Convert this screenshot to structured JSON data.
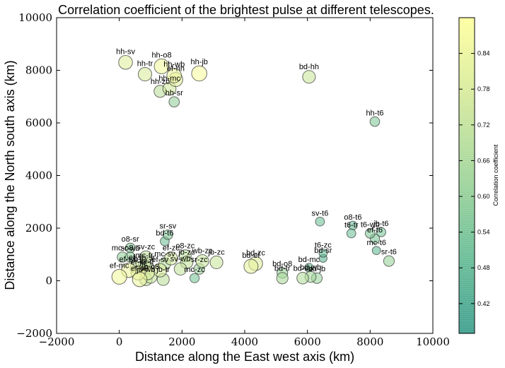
{
  "chart_data": {
    "type": "scatter",
    "title": "Correlation coefficient of the brightest pulse at different telescopes.",
    "xlabel": "Distance along the East west axis (km)",
    "ylabel": "Distance along the North south axis (km)",
    "xlim": [
      -2000,
      10000
    ],
    "ylim": [
      -2000,
      10000
    ],
    "xticks": [
      "−2000",
      "0",
      "2000",
      "4000",
      "6000",
      "8000",
      "10000"
    ],
    "yticks": [
      "−2000",
      "0",
      "2000",
      "4000",
      "6000",
      "8000",
      "10000"
    ],
    "grid": false,
    "colorbar": {
      "label": "Correlation coefficient",
      "range": [
        0.37,
        0.9
      ],
      "ticks": [
        "0.42",
        "0.48",
        "0.54",
        "0.60",
        "0.66",
        "0.72",
        "0.78",
        "0.84"
      ],
      "colormap_stops": [
        "#40a090",
        "#6cbf98",
        "#a3d69c",
        "#d5ea9e",
        "#ffffa0"
      ]
    },
    "points": [
      {
        "label": "hh-sv",
        "x": 200,
        "y": 8300,
        "c": 0.8
      },
      {
        "label": "hh-tr",
        "x": 820,
        "y": 7850,
        "c": 0.78
      },
      {
        "label": "hh-o8",
        "x": 1350,
        "y": 8150,
        "c": 0.86
      },
      {
        "label": "hh-wb",
        "x": 1750,
        "y": 7800,
        "c": 0.84
      },
      {
        "label": "hh-jb",
        "x": 2550,
        "y": 7880,
        "c": 0.88
      },
      {
        "label": "ef-hh",
        "x": 1800,
        "y": 7650,
        "c": 0.82
      },
      {
        "label": "hh-mc",
        "x": 1600,
        "y": 7300,
        "c": 0.76
      },
      {
        "label": "hh-zc",
        "x": 1300,
        "y": 7200,
        "c": 0.7
      },
      {
        "label": "hh-sr",
        "x": 1750,
        "y": 6800,
        "c": 0.6
      },
      {
        "label": "bd-hh",
        "x": 6050,
        "y": 7750,
        "c": 0.74
      },
      {
        "label": "hh-t6",
        "x": 8150,
        "y": 6050,
        "c": 0.56
      },
      {
        "label": "sv-t6",
        "x": 6400,
        "y": 2250,
        "c": 0.52
      },
      {
        "label": "o8-t6",
        "x": 7450,
        "y": 2100,
        "c": 0.5
      },
      {
        "label": "t6-tr",
        "x": 7400,
        "y": 1800,
        "c": 0.52
      },
      {
        "label": "t6-wb",
        "x": 8000,
        "y": 1800,
        "c": 0.56
      },
      {
        "label": "jb-t6",
        "x": 8350,
        "y": 1850,
        "c": 0.54
      },
      {
        "label": "ef-t6",
        "x": 8150,
        "y": 1600,
        "c": 0.55
      },
      {
        "label": "mc-t6",
        "x": 8200,
        "y": 1150,
        "c": 0.48
      },
      {
        "label": "sr-t6",
        "x": 8600,
        "y": 750,
        "c": 0.62
      },
      {
        "label": "t6-zc",
        "x": 6500,
        "y": 1050,
        "c": 0.48
      },
      {
        "label": "bd-sr",
        "x": 6500,
        "y": 850,
        "c": 0.46
      },
      {
        "label": "bd-mc",
        "x": 6050,
        "y": 500,
        "c": 0.5
      },
      {
        "label": "bd-o8",
        "x": 5200,
        "y": 300,
        "c": 0.62
      },
      {
        "label": "bd-tr",
        "x": 5200,
        "y": 100,
        "c": 0.66
      },
      {
        "label": "bd-sv",
        "x": 5850,
        "y": 100,
        "c": 0.68
      },
      {
        "label": "bd-wb",
        "x": 6100,
        "y": 150,
        "c": 0.64
      },
      {
        "label": "bd-jb",
        "x": 6300,
        "y": 100,
        "c": 0.62
      },
      {
        "label": "bd-ef",
        "x": 4200,
        "y": 550,
        "c": 0.82
      },
      {
        "label": "bd-zc",
        "x": 4350,
        "y": 650,
        "c": 0.8
      },
      {
        "label": "bd-t6",
        "x": 1450,
        "y": 1500,
        "c": 0.52
      },
      {
        "label": "sr-sv",
        "x": 1550,
        "y": 1750,
        "c": 0.56
      },
      {
        "label": "o8-sr",
        "x": 350,
        "y": 1250,
        "c": 0.56
      },
      {
        "label": "o8-zc",
        "x": 2100,
        "y": 950,
        "c": 0.7
      },
      {
        "label": "mc-o8",
        "x": 100,
        "y": 900,
        "c": 0.6
      },
      {
        "label": "sr-wb",
        "x": 350,
        "y": 900,
        "c": 0.58
      },
      {
        "label": "sv-zc",
        "x": 850,
        "y": 900,
        "c": 0.72
      },
      {
        "label": "mc-sv",
        "x": 1450,
        "y": 650,
        "c": 0.68
      },
      {
        "label": "ef-zc",
        "x": 1650,
        "y": 850,
        "c": 0.76
      },
      {
        "label": "jb-zc",
        "x": 2150,
        "y": 700,
        "c": 0.72
      },
      {
        "label": "wb-zc",
        "x": 2650,
        "y": 750,
        "c": 0.74
      },
      {
        "label": "jb-zc",
        "x": 3100,
        "y": 700,
        "c": 0.74
      },
      {
        "label": "ef-wb",
        "x": 300,
        "y": 400,
        "c": 0.84
      },
      {
        "label": "ef-sr",
        "x": 550,
        "y": 500,
        "c": 0.74
      },
      {
        "label": "ef-jb",
        "x": 600,
        "y": 300,
        "c": 0.82
      },
      {
        "label": "ef-tr",
        "x": 900,
        "y": 300,
        "c": 0.8
      },
      {
        "label": "jb-o8",
        "x": 1000,
        "y": 150,
        "c": 0.74
      },
      {
        "label": "ef-sv",
        "x": 1300,
        "y": 400,
        "c": 0.78
      },
      {
        "label": "mc-tr",
        "x": 800,
        "y": 600,
        "c": 0.68
      },
      {
        "label": "jb-sr",
        "x": 900,
        "y": 500,
        "c": 0.72
      },
      {
        "label": "jb-tr",
        "x": 1400,
        "y": 50,
        "c": 0.7
      },
      {
        "label": "sr-zc",
        "x": 2550,
        "y": 450,
        "c": 0.62
      },
      {
        "label": "sv-wb",
        "x": 1950,
        "y": 450,
        "c": 0.72
      },
      {
        "label": "mc-zc",
        "x": 2400,
        "y": 100,
        "c": 0.54
      },
      {
        "label": "ef-mc",
        "x": 0,
        "y": 150,
        "c": 0.86
      },
      {
        "label": "ef-o8",
        "x": 650,
        "y": 50,
        "c": 0.84
      },
      {
        "label": "jb-wb",
        "x": 850,
        "y": 50,
        "c": 0.72
      }
    ]
  }
}
